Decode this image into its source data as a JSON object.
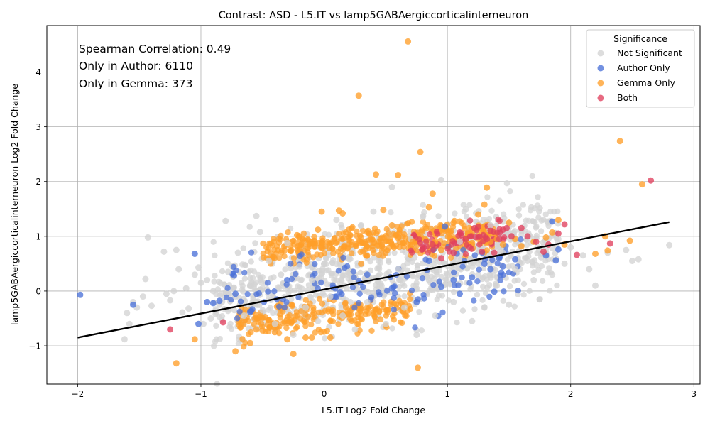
{
  "chart_data": {
    "type": "scatter",
    "title": "Contrast: ASD - L5.IT vs lamp5GABAergiccorticalinterneuron",
    "xlabel": "L5.IT Log2 Fold Change",
    "ylabel": "lamp5GABAergiccorticalinterneuron Log2 Fold Change",
    "xlim": [
      -2.25,
      3.05
    ],
    "ylim": [
      -1.7,
      4.85
    ],
    "xticks": [
      -2,
      -1,
      0,
      1,
      2,
      3
    ],
    "yticks": [
      -1,
      0,
      1,
      2,
      3,
      4
    ],
    "grid": true,
    "annotations": [
      "Spearman Correlation: 0.49",
      "Only in Author: 6110",
      "Only in Gemma: 373"
    ],
    "legend": {
      "title": "Significance",
      "placement": "top-right",
      "entries": [
        "Not Significant",
        "Author Only",
        "Gemma Only",
        "Both"
      ]
    },
    "colors": {
      "Not Significant": "#d3d3d3",
      "Author Only": "#4c72d8",
      "Gemma Only": "#ff9f2a",
      "Both": "#e0405e",
      "fit_line": "#000000"
    },
    "fit_line": {
      "x": [
        -2.0,
        2.8
      ],
      "y": [
        -0.85,
        1.26
      ]
    },
    "series": [
      {
        "name": "Not Significant",
        "points": [
          [
            -1.62,
            -0.88
          ],
          [
            -1.6,
            -0.4
          ],
          [
            -1.58,
            -0.6
          ],
          [
            -1.55,
            -0.2
          ],
          [
            -1.52,
            -0.3
          ],
          [
            -1.47,
            -0.1
          ],
          [
            -1.45,
            0.22
          ],
          [
            -1.43,
            0.98
          ],
          [
            -1.4,
            -0.27
          ],
          [
            -1.3,
            0.72
          ],
          [
            -1.28,
            -0.05
          ],
          [
            -1.25,
            -0.17
          ],
          [
            -1.22,
            0.0
          ],
          [
            -1.2,
            0.75
          ],
          [
            -1.18,
            0.4
          ],
          [
            -1.15,
            -0.39
          ],
          [
            -1.12,
            0.05
          ],
          [
            -1.1,
            -0.32
          ],
          [
            -1.05,
            0.3
          ],
          [
            -1.02,
            0.43
          ],
          [
            -1.0,
            0.15
          ],
          [
            -0.98,
            -0.6
          ],
          [
            -0.95,
            0.2
          ],
          [
            -0.92,
            -0.5
          ],
          [
            -0.9,
            0.0
          ],
          [
            -0.85,
            -0.25
          ],
          [
            -0.8,
            1.28
          ],
          [
            -0.78,
            0.35
          ],
          [
            -0.72,
            -0.1
          ],
          [
            -0.7,
            0.7
          ],
          [
            -0.65,
            -0.45
          ],
          [
            -0.6,
            0.1
          ],
          [
            -0.58,
            -0.2
          ],
          [
            -0.55,
            1.37
          ],
          [
            -0.52,
            1.08
          ],
          [
            -0.5,
            -0.35
          ],
          [
            -0.45,
            0.55
          ],
          [
            -0.4,
            -0.6
          ],
          [
            -0.35,
            0.3
          ],
          [
            -0.3,
            0.88
          ],
          [
            -0.25,
            -0.8
          ],
          [
            -0.2,
            0.45
          ],
          [
            -0.15,
            -0.3
          ],
          [
            -0.1,
            0.2
          ],
          [
            -0.05,
            -0.55
          ],
          [
            0.0,
            0.5
          ],
          [
            0.05,
            -0.1
          ],
          [
            0.1,
            1.3
          ],
          [
            0.15,
            -0.45
          ],
          [
            0.2,
            0.3
          ],
          [
            0.25,
            -0.7
          ],
          [
            0.3,
            1.2
          ],
          [
            0.35,
            -0.2
          ],
          [
            0.4,
            1.45
          ],
          [
            0.45,
            0.1
          ],
          [
            0.5,
            -0.6
          ],
          [
            0.55,
            1.9
          ],
          [
            0.6,
            0.4
          ],
          [
            0.65,
            -0.3
          ],
          [
            0.7,
            0.95
          ],
          [
            0.75,
            -0.8
          ],
          [
            0.8,
            1.35
          ],
          [
            0.85,
            0.2
          ],
          [
            0.9,
            -0.45
          ],
          [
            0.95,
            2.03
          ],
          [
            1.0,
            0.3
          ],
          [
            1.05,
            -0.2
          ],
          [
            1.1,
            0.9
          ],
          [
            1.15,
            1.5
          ],
          [
            1.2,
            -0.55
          ],
          [
            1.25,
            0.5
          ],
          [
            1.3,
            -0.3
          ],
          [
            1.35,
            1.2
          ],
          [
            1.4,
            0.1
          ],
          [
            1.45,
            0.7
          ],
          [
            1.5,
            -0.25
          ],
          [
            1.55,
            0.4
          ],
          [
            1.6,
            1.1
          ],
          [
            1.65,
            0.55
          ],
          [
            1.7,
            0.2
          ],
          [
            1.75,
            -0.15
          ],
          [
            1.8,
            0.7
          ],
          [
            1.85,
            0.3
          ],
          [
            1.9,
            0.95
          ],
          [
            1.95,
            0.5
          ],
          [
            2.0,
            0.8
          ],
          [
            2.1,
            0.65
          ],
          [
            2.15,
            0.4
          ],
          [
            2.2,
            0.1
          ],
          [
            2.3,
            0.7
          ],
          [
            2.45,
            0.75
          ],
          [
            2.5,
            0.55
          ],
          [
            2.55,
            0.58
          ],
          [
            2.8,
            0.84
          ]
        ]
      },
      {
        "name": "Author Only",
        "points": [
          [
            -1.98,
            -0.07
          ],
          [
            -1.55,
            -0.25
          ],
          [
            -1.05,
            0.68
          ],
          [
            -1.02,
            -0.6
          ],
          [
            -0.95,
            -0.2
          ],
          [
            -0.9,
            -0.22
          ],
          [
            -0.85,
            -0.18
          ],
          [
            -0.72,
            -0.05
          ],
          [
            -0.6,
            -0.38
          ],
          [
            -0.3,
            0.2
          ],
          [
            0.1,
            -0.1
          ],
          [
            0.35,
            0.3
          ],
          [
            0.55,
            0.05
          ],
          [
            0.75,
            -0.2
          ],
          [
            0.85,
            0.55
          ],
          [
            0.95,
            0.08
          ],
          [
            0.98,
            1.18
          ],
          [
            1.05,
            0.2
          ],
          [
            1.1,
            -0.05
          ],
          [
            1.2,
            0.25
          ],
          [
            1.3,
            0.5
          ],
          [
            1.35,
            0.4
          ],
          [
            1.38,
            -0.01
          ],
          [
            1.42,
            0.6
          ],
          [
            1.45,
            0.45
          ],
          [
            1.55,
            0.58
          ],
          [
            1.8,
            0.65
          ],
          [
            1.85,
            1.27
          ],
          [
            1.88,
            0.56
          ],
          [
            1.9,
            0.76
          ]
        ]
      },
      {
        "name": "Gemma Only",
        "points": [
          [
            -1.2,
            -1.32
          ],
          [
            -1.05,
            -0.88
          ],
          [
            -0.72,
            -1.1
          ],
          [
            -0.6,
            -0.95
          ],
          [
            -0.55,
            -0.7
          ],
          [
            -0.5,
            -0.72
          ],
          [
            -0.4,
            -0.75
          ],
          [
            -0.3,
            -0.88
          ],
          [
            -0.25,
            -1.15
          ],
          [
            -0.22,
            1.02
          ],
          [
            -0.15,
            -0.85
          ],
          [
            -0.1,
            -0.85
          ],
          [
            -0.05,
            1.12
          ],
          [
            -0.02,
            1.45
          ],
          [
            0.05,
            -0.85
          ],
          [
            0.12,
            1.47
          ],
          [
            0.15,
            1.42
          ],
          [
            0.2,
            1.12
          ],
          [
            0.28,
            3.57
          ],
          [
            0.3,
            0.5
          ],
          [
            0.42,
            2.13
          ],
          [
            0.48,
            1.48
          ],
          [
            0.55,
            1.2
          ],
          [
            0.6,
            2.12
          ],
          [
            0.68,
            4.56
          ],
          [
            0.72,
            0.9
          ],
          [
            0.76,
            -1.4
          ],
          [
            0.78,
            2.54
          ],
          [
            0.85,
            1.53
          ],
          [
            0.88,
            1.78
          ],
          [
            0.9,
            0.9
          ],
          [
            0.95,
            0.75
          ],
          [
            1.05,
            1.25
          ],
          [
            1.1,
            1.27
          ],
          [
            1.2,
            0.88
          ],
          [
            1.25,
            1.4
          ],
          [
            1.3,
            1.58
          ],
          [
            1.32,
            1.89
          ],
          [
            1.35,
            0.9
          ],
          [
            1.4,
            0.95
          ],
          [
            1.45,
            0.85
          ],
          [
            1.5,
            1.25
          ],
          [
            1.55,
            0.95
          ],
          [
            1.6,
            0.82
          ],
          [
            1.7,
            0.9
          ],
          [
            1.8,
            0.98
          ],
          [
            1.85,
            1.07
          ],
          [
            1.9,
            1.3
          ],
          [
            1.95,
            0.85
          ],
          [
            2.2,
            0.68
          ],
          [
            2.28,
            1.0
          ],
          [
            2.3,
            0.74
          ],
          [
            2.4,
            2.74
          ],
          [
            2.48,
            0.92
          ],
          [
            2.58,
            1.95
          ]
        ]
      },
      {
        "name": "Both",
        "points": [
          [
            -1.25,
            -0.7
          ],
          [
            -0.82,
            -0.57
          ],
          [
            0.88,
            0.85
          ],
          [
            0.95,
            0.6
          ],
          [
            1.05,
            0.7
          ],
          [
            1.1,
            1.07
          ],
          [
            1.15,
            0.95
          ],
          [
            1.18,
            0.8
          ],
          [
            1.22,
            1.15
          ],
          [
            1.25,
            1.17
          ],
          [
            1.28,
            0.72
          ],
          [
            1.32,
            0.95
          ],
          [
            1.35,
            1.1
          ],
          [
            1.38,
            0.7
          ],
          [
            1.42,
            0.95
          ],
          [
            1.45,
            1.12
          ],
          [
            1.48,
            1.15
          ],
          [
            1.52,
            1.0
          ],
          [
            1.6,
            1.15
          ],
          [
            1.65,
            1.0
          ],
          [
            1.72,
            0.9
          ],
          [
            1.78,
            0.72
          ],
          [
            1.82,
            0.85
          ],
          [
            1.9,
            1.05
          ],
          [
            1.95,
            1.22
          ],
          [
            2.05,
            0.66
          ],
          [
            2.32,
            0.87
          ],
          [
            2.65,
            2.02
          ]
        ]
      }
    ],
    "dense_bands": [
      {
        "name": "Not Significant",
        "x_range": [
          -0.9,
          1.9
        ],
        "y_center": 0.15,
        "y_spread": 0.42,
        "count": 900
      },
      {
        "name": "Gemma Only",
        "x_range": [
          -0.5,
          1.4
        ],
        "y_center": 0.82,
        "y_spread": 0.14,
        "count": 380
      },
      {
        "name": "Gemma Only",
        "x_range": [
          -0.7,
          0.7
        ],
        "y_center": -0.45,
        "y_spread": 0.14,
        "count": 220
      },
      {
        "name": "Author Only",
        "x_range": [
          -0.8,
          1.6
        ],
        "y_center": 0.1,
        "y_spread": 0.3,
        "count": 120
      },
      {
        "name": "Both",
        "x_range": [
          0.7,
          1.5
        ],
        "y_center": 0.78,
        "y_spread": 0.12,
        "count": 60
      }
    ]
  }
}
